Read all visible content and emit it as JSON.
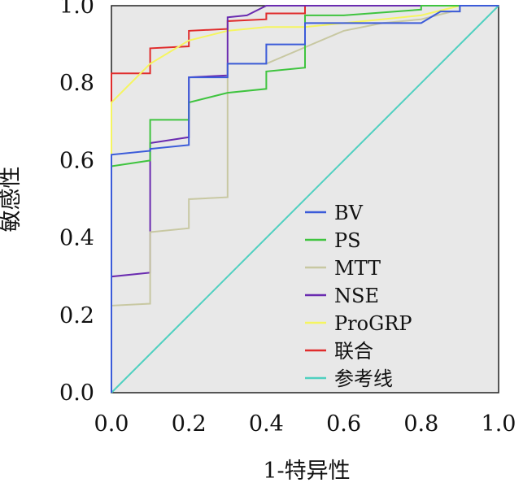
{
  "chart_data": {
    "type": "line",
    "title": "",
    "xlabel": "1-特异性",
    "ylabel": "敏感性",
    "xlim": [
      0,
      1
    ],
    "ylim": [
      0,
      1
    ],
    "x_ticks": [
      "0.0",
      "0.2",
      "0.4",
      "0.6",
      "0.8",
      "1.0"
    ],
    "y_ticks": [
      "0.0",
      "0.2",
      "0.4",
      "0.6",
      "0.8",
      "1.0"
    ],
    "grid": false,
    "legend_position": "bottom-right",
    "plot_background": "#e8e8e8",
    "series": [
      {
        "name": "BV",
        "color": "#3b5bd9",
        "points": [
          [
            0,
            0
          ],
          [
            0,
            0.615
          ],
          [
            0.1,
            0.625
          ],
          [
            0.1,
            0.63
          ],
          [
            0.2,
            0.64
          ],
          [
            0.2,
            0.815
          ],
          [
            0.3,
            0.815
          ],
          [
            0.3,
            0.85
          ],
          [
            0.4,
            0.85
          ],
          [
            0.4,
            0.9
          ],
          [
            0.5,
            0.9
          ],
          [
            0.5,
            0.955
          ],
          [
            0.8,
            0.955
          ],
          [
            0.85,
            0.985
          ],
          [
            0.9,
            0.985
          ],
          [
            0.9,
            1.0
          ],
          [
            1.0,
            1.0
          ]
        ]
      },
      {
        "name": "PS",
        "color": "#3fc43f",
        "points": [
          [
            0,
            0
          ],
          [
            0,
            0.585
          ],
          [
            0.1,
            0.6
          ],
          [
            0.1,
            0.705
          ],
          [
            0.2,
            0.705
          ],
          [
            0.2,
            0.75
          ],
          [
            0.3,
            0.775
          ],
          [
            0.4,
            0.785
          ],
          [
            0.4,
            0.83
          ],
          [
            0.5,
            0.84
          ],
          [
            0.5,
            0.975
          ],
          [
            0.6,
            0.975
          ],
          [
            0.8,
            0.99
          ],
          [
            0.8,
            1.0
          ],
          [
            1.0,
            1.0
          ]
        ]
      },
      {
        "name": "MTT",
        "color": "#c8c8a2",
        "points": [
          [
            0,
            0
          ],
          [
            0,
            0.225
          ],
          [
            0.1,
            0.23
          ],
          [
            0.1,
            0.415
          ],
          [
            0.2,
            0.425
          ],
          [
            0.2,
            0.5
          ],
          [
            0.3,
            0.505
          ],
          [
            0.3,
            0.85
          ],
          [
            0.4,
            0.85
          ],
          [
            0.6,
            0.935
          ],
          [
            0.7,
            0.955
          ],
          [
            0.8,
            0.965
          ],
          [
            0.88,
            0.985
          ],
          [
            0.9,
            0.985
          ],
          [
            0.9,
            1.0
          ],
          [
            1.0,
            1.0
          ]
        ]
      },
      {
        "name": "NSE",
        "color": "#6a2bb0",
        "points": [
          [
            0,
            0
          ],
          [
            0,
            0.3
          ],
          [
            0.1,
            0.31
          ],
          [
            0.1,
            0.645
          ],
          [
            0.2,
            0.66
          ],
          [
            0.2,
            0.815
          ],
          [
            0.3,
            0.82
          ],
          [
            0.3,
            0.97
          ],
          [
            0.35,
            0.975
          ],
          [
            0.4,
            1.0
          ],
          [
            1.0,
            1.0
          ]
        ]
      },
      {
        "name": "ProGRP",
        "color": "#f5f560",
        "points": [
          [
            0,
            0
          ],
          [
            0,
            0.75
          ],
          [
            0.1,
            0.85
          ],
          [
            0.2,
            0.91
          ],
          [
            0.3,
            0.935
          ],
          [
            0.4,
            0.945
          ],
          [
            0.5,
            0.945
          ],
          [
            0.6,
            0.955
          ],
          [
            0.7,
            0.965
          ],
          [
            0.8,
            0.975
          ],
          [
            0.9,
            1.0
          ],
          [
            1.0,
            1.0
          ]
        ]
      },
      {
        "name": "联合",
        "color": "#e02c2c",
        "points": [
          [
            0,
            0
          ],
          [
            0,
            0.825
          ],
          [
            0.1,
            0.825
          ],
          [
            0.1,
            0.89
          ],
          [
            0.2,
            0.895
          ],
          [
            0.2,
            0.935
          ],
          [
            0.3,
            0.94
          ],
          [
            0.3,
            0.96
          ],
          [
            0.4,
            0.965
          ],
          [
            0.4,
            0.98
          ],
          [
            0.5,
            0.98
          ],
          [
            0.5,
            1.0
          ],
          [
            1.0,
            1.0
          ]
        ]
      },
      {
        "name": "参考线",
        "color": "#4fd0c0",
        "points": [
          [
            0,
            0
          ],
          [
            1,
            1
          ]
        ]
      }
    ]
  }
}
